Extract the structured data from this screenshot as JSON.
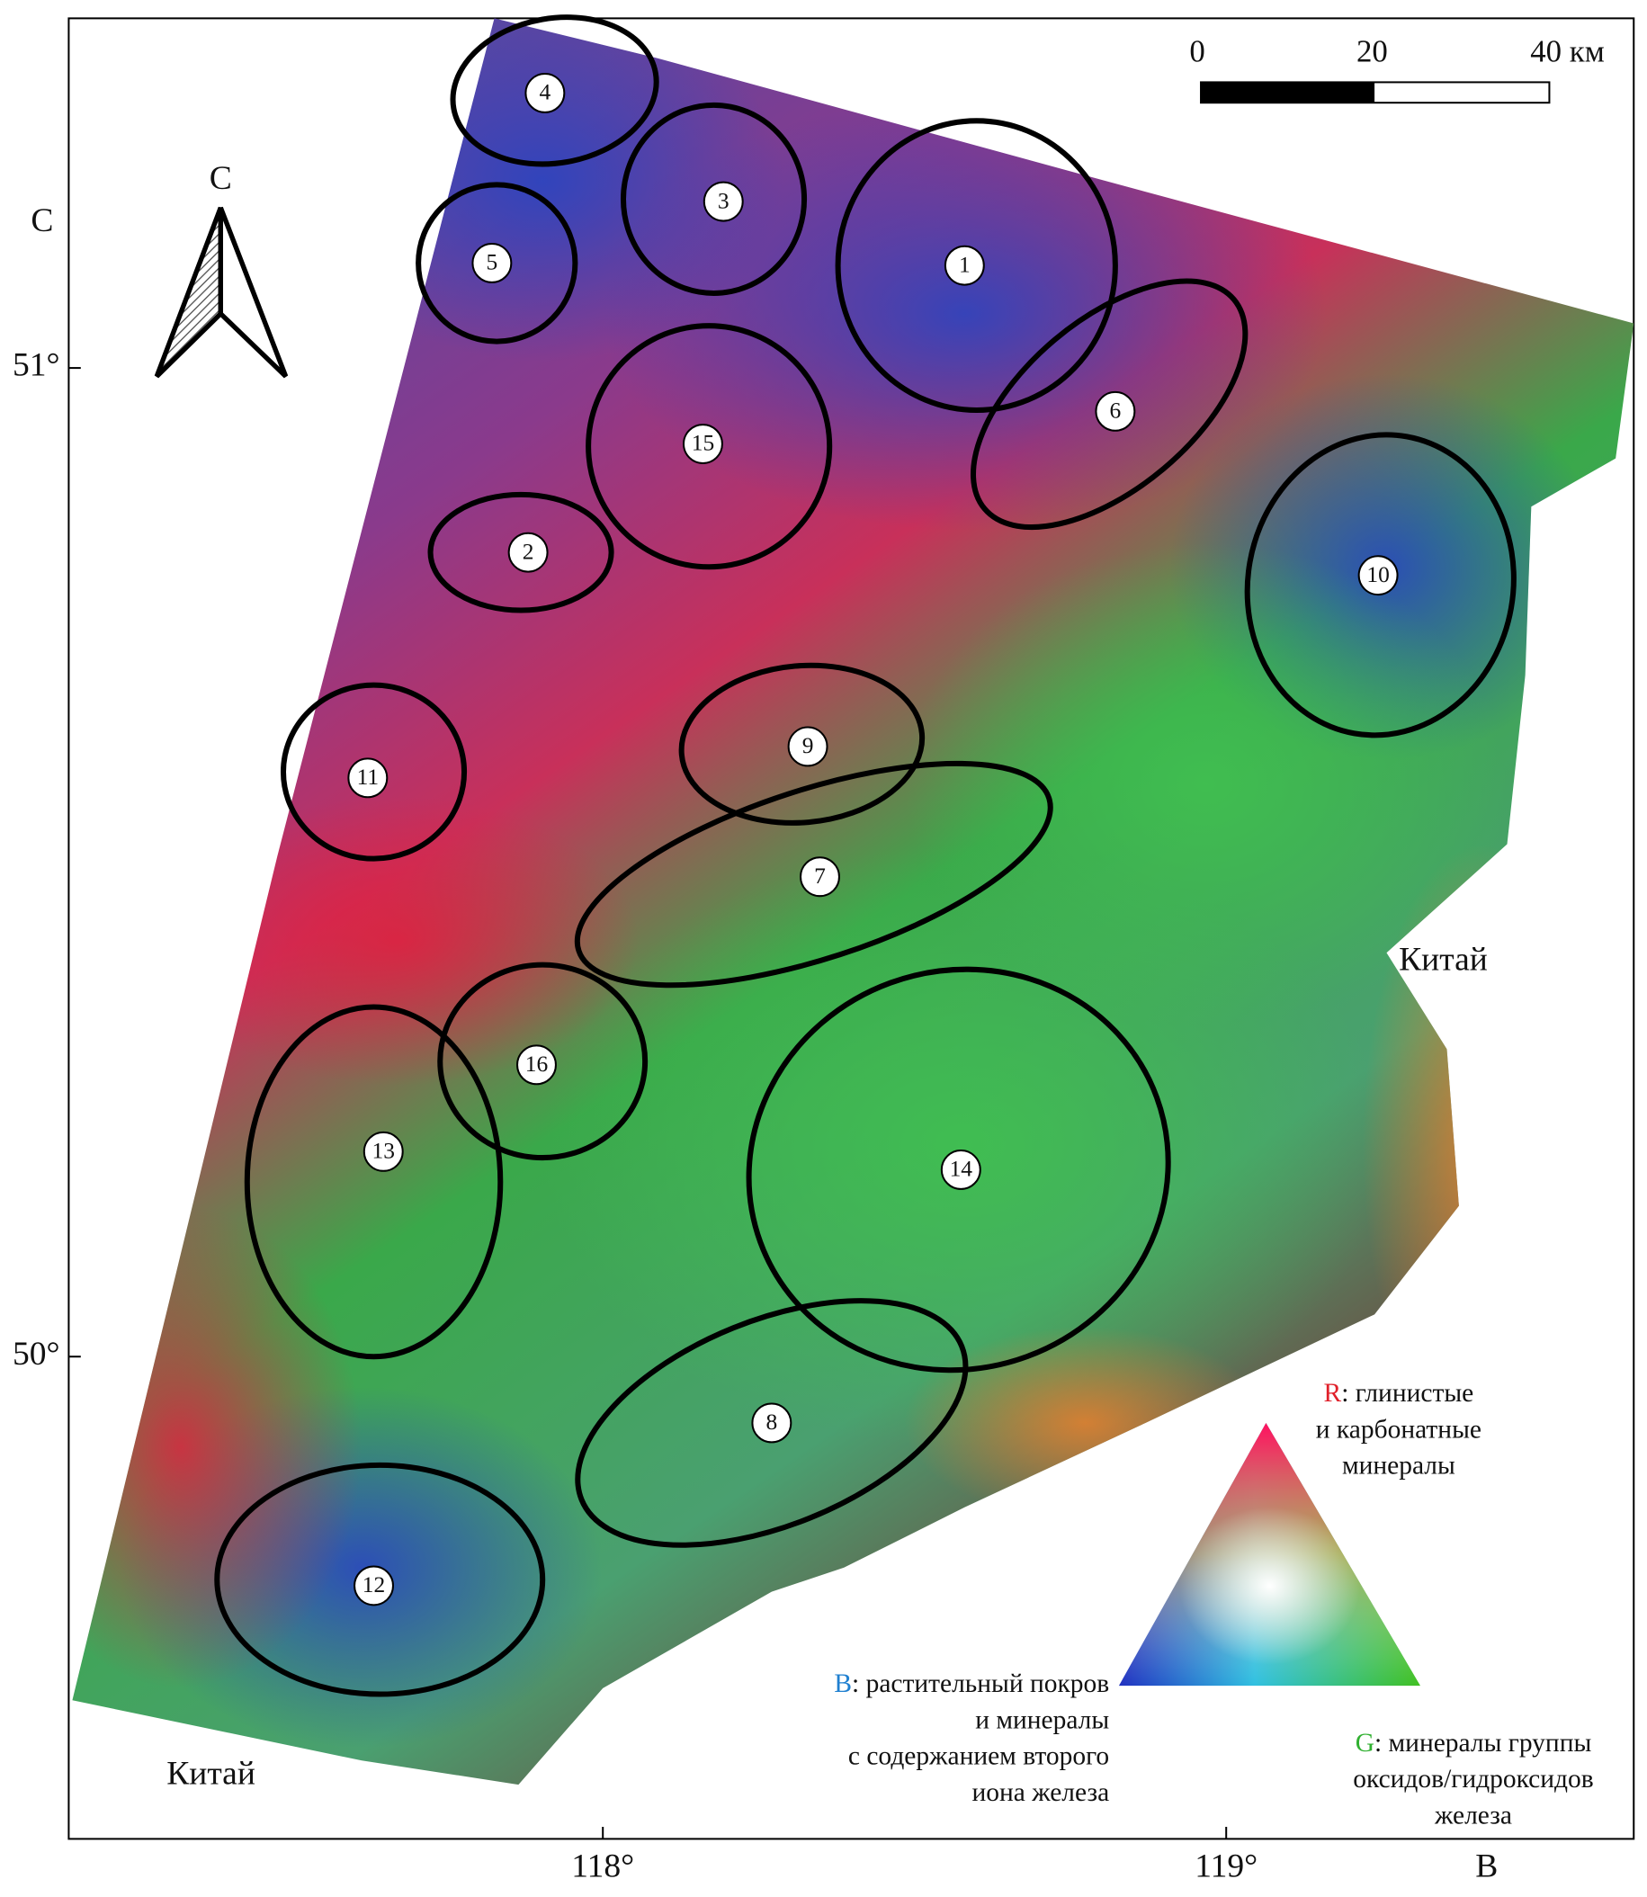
{
  "map": {
    "scale_bar": {
      "labels": [
        "0",
        "20",
        "40 км"
      ]
    },
    "north_arrow": "С",
    "axis_labels": {
      "north": "С",
      "east": "В"
    },
    "latitudes": [
      "51°",
      "50°"
    ],
    "longitudes": [
      "118°",
      "119°"
    ],
    "countries": [
      "Китай",
      "Китай"
    ],
    "regions": [
      "1",
      "2",
      "3",
      "4",
      "5",
      "6",
      "7",
      "8",
      "9",
      "10",
      "11",
      "12",
      "13",
      "14",
      "15",
      "16"
    ],
    "legend": {
      "r": {
        "key": "R",
        "lines": [
          ": глинистые",
          "и карбонатные",
          "минералы"
        ]
      },
      "b": {
        "key": "B",
        "lines": [
          ": растительный покров",
          "и минералы",
          "с содержанием второго",
          "иона железа"
        ]
      },
      "g": {
        "key": "G",
        "lines": [
          ": минералы группы",
          "оксидов/гидроксидов",
          "железа"
        ]
      }
    }
  }
}
